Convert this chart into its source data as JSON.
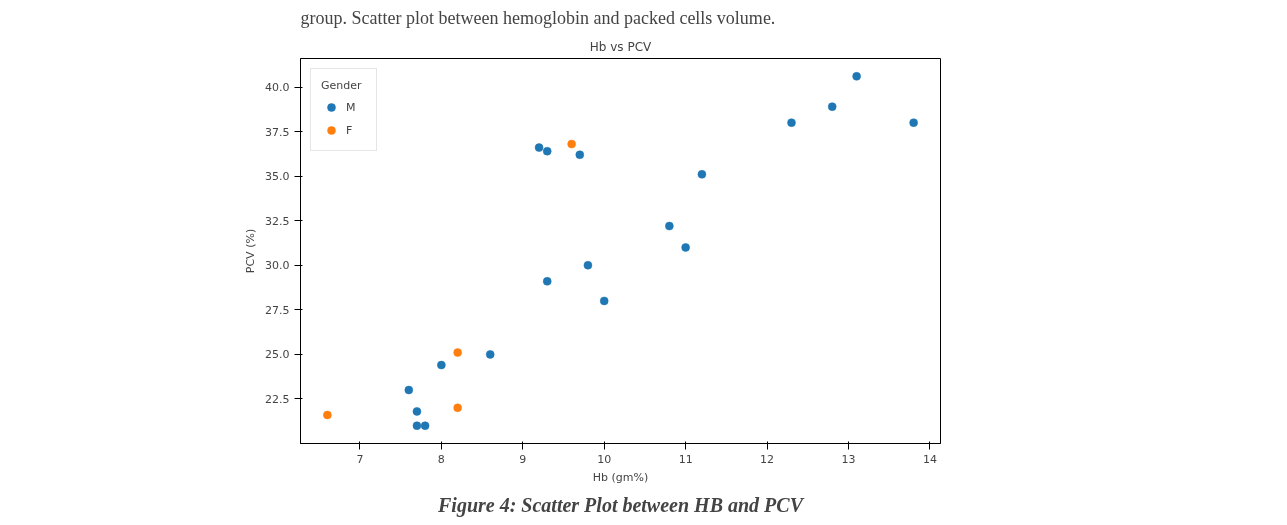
{
  "chart_data": {
    "type": "scatter",
    "title": "Hb vs PCV",
    "xlabel": "Hb (gm%)",
    "ylabel": "PCV (%)",
    "legend_title": "Gender",
    "legend": "top left",
    "marker": "circle",
    "grid": false,
    "xlim": [
      6.27,
      14.13
    ],
    "xticks": [
      7,
      8,
      9,
      10,
      11,
      12,
      13,
      14
    ],
    "ylim": [
      20.0,
      41.6
    ],
    "yticks": [
      {
        "value": 22.5,
        "label": "22.5"
      },
      {
        "value": 25,
        "label": "25.0"
      },
      {
        "value": 27.5,
        "label": "27.5"
      },
      {
        "value": 30,
        "label": "30.0"
      },
      {
        "value": 32.5,
        "label": "32.5"
      },
      {
        "value": 35,
        "label": "35.0"
      },
      {
        "value": 37.5,
        "label": "37.5"
      },
      {
        "value": 40,
        "label": "40.0"
      }
    ],
    "annotations": [
      "group. Scatter plot between hemoglobin and packed cells volume.",
      "Figure 4: Scatter Plot between HB and PCV"
    ],
    "series": [
      {
        "name": "M",
        "color": "#1f77b4",
        "x": [
          9.2,
          9.3,
          9.7,
          11.2,
          12.3,
          12.8,
          13.1,
          13.8,
          10.8,
          11.0,
          9.8,
          9.3,
          10.0,
          8.6,
          8.0,
          7.6,
          7.7,
          7.7,
          7.8
        ],
        "values": [
          36.6,
          36.4,
          36.2,
          35.1,
          38.0,
          38.9,
          40.6,
          38.0,
          32.2,
          31.0,
          30.0,
          29.1,
          28.0,
          25.0,
          24.4,
          23.0,
          21.8,
          21.0,
          21.0
        ]
      },
      {
        "name": "F",
        "color": "#ff7f0e",
        "x": [
          9.6,
          8.2,
          8.2,
          6.6
        ],
        "values": [
          36.8,
          25.1,
          22.0,
          21.6
        ]
      }
    ]
  }
}
